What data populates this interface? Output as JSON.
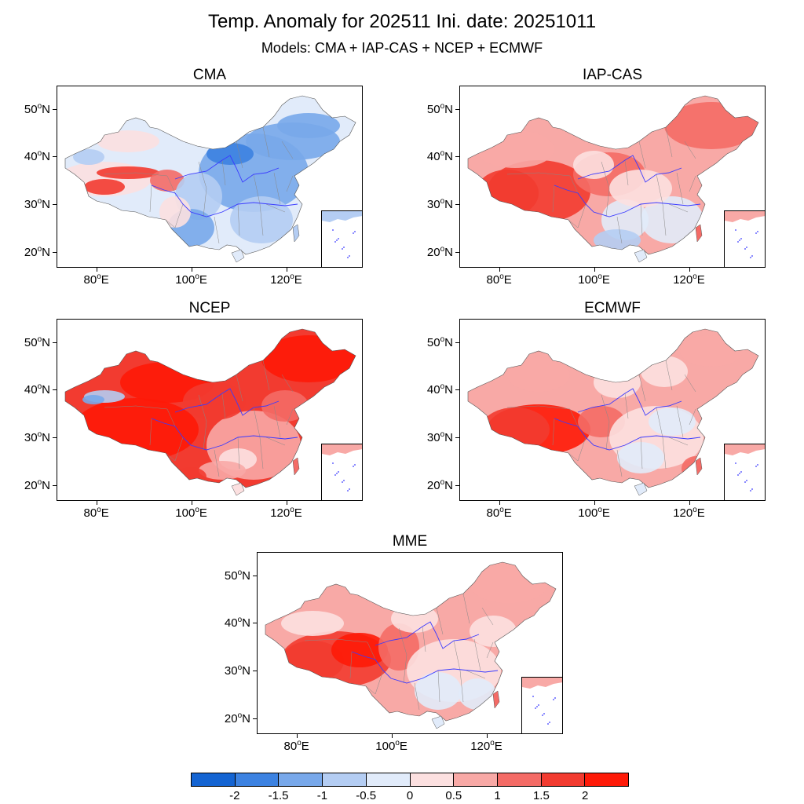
{
  "title": "Temp. Anomaly for 202511 Ini. date: 20251011",
  "subtitle": "Models: CMA + IAP-CAS + NCEP + ECMWF",
  "lat_labels": [
    "50",
    "40",
    "30",
    "20"
  ],
  "lat_suffix": "N",
  "lon_labels": [
    "80",
    "100",
    "120"
  ],
  "lon_suffix": "E",
  "deg_symbol": "o",
  "panels": [
    {
      "name": "CMA",
      "pattern": "cma"
    },
    {
      "name": "IAP-CAS",
      "pattern": "iap"
    },
    {
      "name": "NCEP",
      "pattern": "ncep"
    },
    {
      "name": "ECMWF",
      "pattern": "ecmwf"
    },
    {
      "name": "MME",
      "pattern": "mme"
    }
  ],
  "colorbar": {
    "colors": [
      "#1464d2",
      "#3c82e1",
      "#78a8ea",
      "#b4cdf3",
      "#e1ebfa",
      "#fce0e0",
      "#f8a9a6",
      "#f46b66",
      "#f23b30",
      "#fe1a08"
    ],
    "labels": [
      "-2",
      "-1.5",
      "-1",
      "-0.5",
      "0",
      "0.5",
      "1",
      "1.5",
      "2"
    ]
  },
  "colors": {
    "border_line": "#888888",
    "river": "#3a3aff"
  }
}
